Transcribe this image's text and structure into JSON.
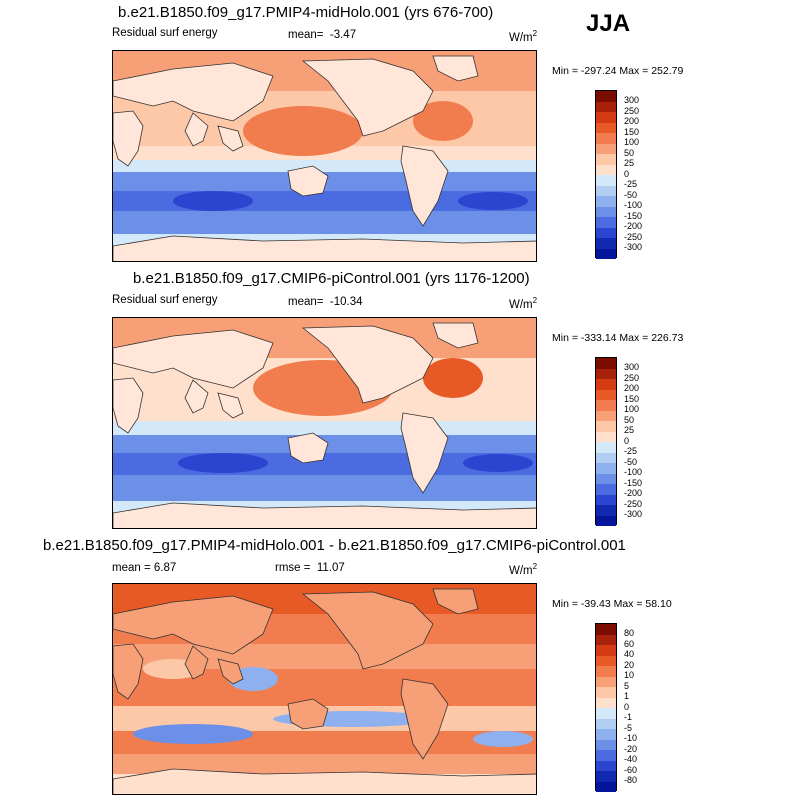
{
  "season": "JJA",
  "unit_base": "W/m",
  "unit_exp": "2",
  "colors": {
    "pos": [
      "#ffe0cc",
      "#fcc8a8",
      "#f7a078",
      "#f17c4e",
      "#e85a25",
      "#d43b12",
      "#a8210a",
      "#7a0c00"
    ],
    "neutral": "#ffffff",
    "neg": [
      "#d3e8f8",
      "#b2cdf2",
      "#8fb0ee",
      "#6c8fe8",
      "#4a6ce0",
      "#2b45d0",
      "#1128b0",
      "#05159a"
    ],
    "land": "#ffe6d8",
    "coast": "#333333"
  },
  "chart_data": [
    {
      "type": "heatmap",
      "title": "b.e21.B1850.f09_g17.PMIP4-midHolo.001 (yrs 676-700)",
      "left_label": "Residual surf energy",
      "stat_label": "mean=",
      "stat_value": "-3.47",
      "minmax": "Min = -297.24 Max = 252.79",
      "levels": [
        "300",
        "250",
        "200",
        "150",
        "100",
        "50",
        "25",
        "0",
        "-25",
        "-50",
        "-100",
        "-150",
        "-200",
        "-250",
        "-300"
      ]
    },
    {
      "type": "heatmap",
      "title": "b.e21.B1850.f09_g17.CMIP6-piControl.001 (yrs 1176-1200)",
      "left_label": "Residual surf energy",
      "stat_label": "mean=",
      "stat_value": "-10.34",
      "minmax": "Min = -333.14 Max = 226.73",
      "levels": [
        "300",
        "250",
        "200",
        "150",
        "100",
        "50",
        "25",
        "0",
        "-25",
        "-50",
        "-100",
        "-150",
        "-200",
        "-250",
        "-300"
      ]
    },
    {
      "type": "heatmap",
      "title": "b.e21.B1850.f09_g17.PMIP4-midHolo.001 - b.e21.B1850.f09_g17.CMIP6-piControl.001",
      "left_label": "mean =   6.87",
      "stat_label": "rmse =",
      "stat_value": "11.07",
      "minmax": "Min = -39.43 Max =  58.10",
      "levels": [
        "80",
        "60",
        "40",
        "20",
        "10",
        "5",
        "1",
        "0",
        "-1",
        "-5",
        "-10",
        "-20",
        "-40",
        "-60",
        "-80"
      ]
    }
  ]
}
